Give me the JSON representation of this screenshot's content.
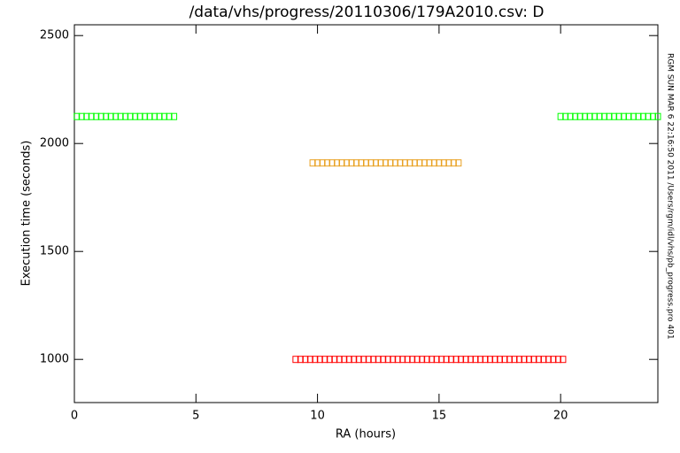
{
  "chart_data": {
    "type": "scatter",
    "title": "/data/vhs/progress/20110306/179A2010.csv: D",
    "xlabel": "RA (hours)",
    "ylabel": "Execution time (seconds)",
    "annotation": "RGM SUN MAR  6 22:16:50 2011  /Users/rgm/idl/vhs/pb_progress.pro 401",
    "xlim": [
      0,
      24
    ],
    "xticks": [
      0,
      5,
      10,
      15,
      20
    ],
    "ylim": [
      800,
      2550
    ],
    "yticks": [
      1000,
      1500,
      2000,
      2500
    ],
    "series": [
      {
        "color": "#00ff00",
        "x": [
          0.1,
          0.3,
          0.5,
          0.7,
          0.9,
          1.1,
          1.3,
          1.5,
          1.7,
          1.9,
          2.1,
          2.3,
          2.5,
          2.7,
          2.9,
          3.1,
          3.3,
          3.5,
          3.7,
          3.9,
          4.1,
          20.0,
          20.2,
          20.4,
          20.6,
          20.8,
          21.0,
          21.2,
          21.4,
          21.6,
          21.8,
          22.0,
          22.2,
          22.4,
          22.6,
          22.8,
          23.0,
          23.2,
          23.4,
          23.6,
          23.8,
          24.0
        ],
        "values": [
          2125,
          2125,
          2125,
          2125,
          2125,
          2125,
          2125,
          2125,
          2125,
          2125,
          2125,
          2125,
          2125,
          2125,
          2125,
          2125,
          2125,
          2125,
          2125,
          2125,
          2125,
          2125,
          2125,
          2125,
          2125,
          2125,
          2125,
          2125,
          2125,
          2125,
          2125,
          2125,
          2125,
          2125,
          2125,
          2125,
          2125,
          2125,
          2125,
          2125,
          2125,
          2125
        ]
      },
      {
        "color": "#e8a020",
        "x": [
          9.8,
          10.0,
          10.2,
          10.4,
          10.6,
          10.8,
          11.0,
          11.2,
          11.4,
          11.6,
          11.8,
          12.0,
          12.2,
          12.4,
          12.6,
          12.8,
          13.0,
          13.2,
          13.4,
          13.6,
          13.8,
          14.0,
          14.2,
          14.4,
          14.6,
          14.8,
          15.0,
          15.2,
          15.4,
          15.6,
          15.8
        ],
        "values": [
          1910,
          1910,
          1910,
          1910,
          1910,
          1910,
          1910,
          1910,
          1910,
          1910,
          1910,
          1910,
          1910,
          1910,
          1910,
          1910,
          1910,
          1910,
          1910,
          1910,
          1910,
          1910,
          1910,
          1910,
          1910,
          1910,
          1910,
          1910,
          1910,
          1910,
          1910
        ]
      },
      {
        "color": "#ff0000",
        "x": [
          9.1,
          9.3,
          9.5,
          9.7,
          9.9,
          10.1,
          10.3,
          10.5,
          10.7,
          10.9,
          11.1,
          11.3,
          11.5,
          11.7,
          11.9,
          12.1,
          12.3,
          12.5,
          12.7,
          12.9,
          13.1,
          13.3,
          13.5,
          13.7,
          13.9,
          14.1,
          14.3,
          14.5,
          14.7,
          14.9,
          15.1,
          15.3,
          15.5,
          15.7,
          15.9,
          16.1,
          16.3,
          16.5,
          16.7,
          16.9,
          17.1,
          17.3,
          17.5,
          17.7,
          17.9,
          18.1,
          18.3,
          18.5,
          18.7,
          18.9,
          19.1,
          19.3,
          19.5,
          19.7,
          19.9,
          20.1
        ],
        "values": [
          1000,
          1000,
          1000,
          1000,
          1000,
          1000,
          1000,
          1000,
          1000,
          1000,
          1000,
          1000,
          1000,
          1000,
          1000,
          1000,
          1000,
          1000,
          1000,
          1000,
          1000,
          1000,
          1000,
          1000,
          1000,
          1000,
          1000,
          1000,
          1000,
          1000,
          1000,
          1000,
          1000,
          1000,
          1000,
          1000,
          1000,
          1000,
          1000,
          1000,
          1000,
          1000,
          1000,
          1000,
          1000,
          1000,
          1000,
          1000,
          1000,
          1000,
          1000,
          1000,
          1000,
          1000,
          1000,
          1000
        ]
      }
    ]
  }
}
